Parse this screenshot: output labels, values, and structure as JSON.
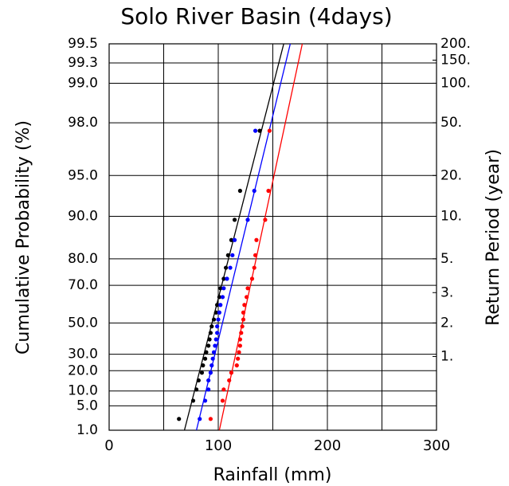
{
  "chart_data": {
    "type": "gumbel-probability",
    "title": "Solo River Basin (4days)",
    "xlabel": "Rainfall (mm)",
    "ylabel": "Cumulative Probability (%)",
    "y2label": "Return Period (year)",
    "yscale": "gumbel",
    "xlim": [
      0,
      300
    ],
    "xticks": [
      0,
      100,
      200,
      300
    ],
    "xminor": [
      50,
      150,
      250
    ],
    "ylim": [
      1,
      99.5
    ],
    "yticks": [
      99.5,
      99.3,
      {
        "value": 99,
        "label": "99.0"
      },
      {
        "value": 98,
        "label": "98.0"
      },
      {
        "value": 95,
        "label": "95.0"
      },
      {
        "value": 90,
        "label": "90.0"
      },
      {
        "value": 80,
        "label": "80.0"
      },
      {
        "value": 70,
        "label": "70.0"
      },
      {
        "value": 50,
        "label": "50.0"
      },
      {
        "value": 30,
        "label": "30.0"
      },
      {
        "value": 20,
        "label": "20.0"
      },
      {
        "value": 10,
        "label": "10.0"
      },
      {
        "value": 5,
        "label": "5.0"
      },
      {
        "value": 1,
        "label": "1.0"
      }
    ],
    "y2lim": [
      1.0101,
      200
    ],
    "y2ticks": [
      {
        "value": 200,
        "label": "200."
      },
      {
        "value": 150,
        "label": "150."
      },
      {
        "value": 100,
        "label": "100."
      },
      {
        "value": 50,
        "label": "50."
      },
      {
        "value": 20,
        "label": "20."
      },
      {
        "value": 10,
        "label": "10."
      },
      {
        "value": 5,
        "label": "5."
      },
      {
        "value": 3,
        "label": "3."
      },
      {
        "value": 2,
        "label": "2."
      },
      {
        "value": 1.4,
        "label": "1."
      }
    ],
    "grid": true,
    "y": [
      2.3,
      6.5,
      10.6,
      14.8,
      18.9,
      23.1,
      27.2,
      31.3,
      35.5,
      39.6,
      43.8,
      47.9,
      52.1,
      56.2,
      60.4,
      64.5,
      68.7,
      72.8,
      77.0,
      81.1,
      85.2,
      89.4,
      93.5,
      97.7
    ],
    "series": [
      {
        "color": "#000000",
        "x": [
          64,
          77,
          80,
          82,
          85,
          86,
          88,
          89,
          91,
          92,
          93,
          94,
          96,
          98,
          99,
          101,
          102,
          105,
          107,
          109,
          112,
          115,
          120,
          138
        ],
        "fit_x": [
          69,
          160
        ]
      },
      {
        "color": "#0000ff",
        "x": [
          83,
          88,
          91,
          91,
          93,
          94,
          95,
          96,
          97,
          98,
          99,
          99,
          100,
          101,
          102,
          104,
          105,
          108,
          111,
          113,
          115,
          127,
          133,
          134
        ],
        "fit_x": [
          80,
          166
        ]
      },
      {
        "color": "#ff0000",
        "x": [
          93,
          104,
          105,
          110,
          112,
          117,
          118,
          119,
          120,
          120,
          121,
          122,
          123,
          123,
          124,
          126,
          127,
          131,
          133,
          134,
          135,
          143,
          146,
          147
        ],
        "fit_x": [
          101,
          177
        ]
      }
    ]
  }
}
